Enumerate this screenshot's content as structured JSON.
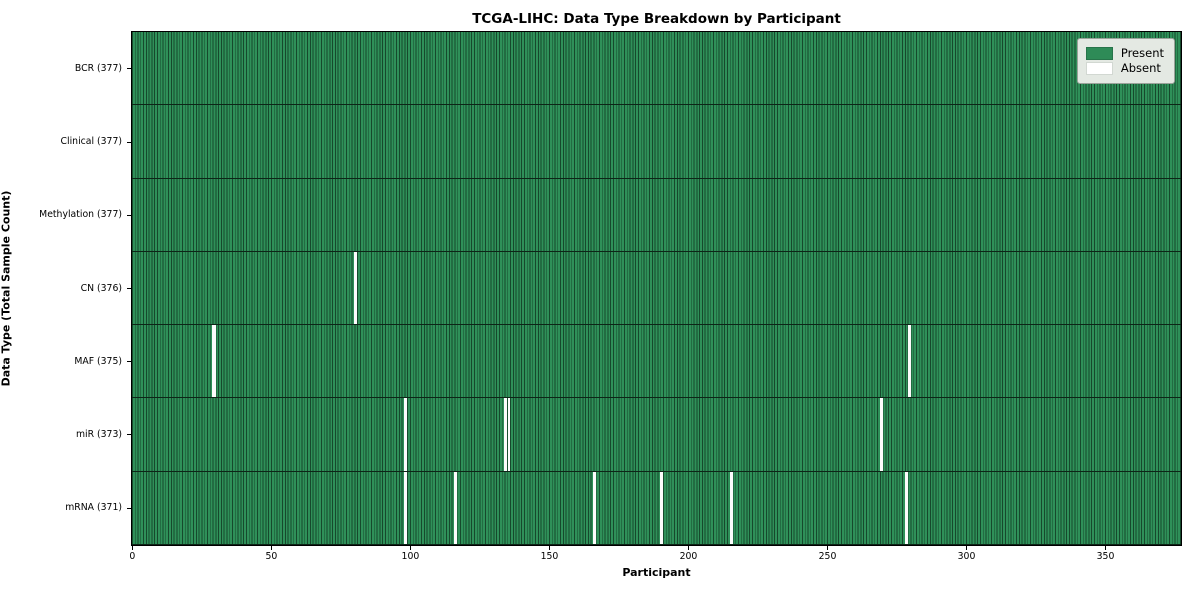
{
  "chart_data": {
    "type": "heatmap",
    "title": "TCGA-LIHC: Data Type Breakdown by Participant",
    "xlabel": "Participant",
    "ylabel": "Data Type (Total Sample Count)",
    "n_participants": 377,
    "x_ticks": [
      0,
      50,
      100,
      150,
      200,
      250,
      300,
      350
    ],
    "rows": [
      {
        "label": "BCR (377)",
        "data_type": "BCR",
        "total": 377,
        "absent_participants": []
      },
      {
        "label": "Clinical (377)",
        "data_type": "Clinical",
        "total": 377,
        "absent_participants": []
      },
      {
        "label": "Methylation (377)",
        "data_type": "Methylation",
        "total": 377,
        "absent_participants": []
      },
      {
        "label": "CN (376)",
        "data_type": "CN",
        "total": 376,
        "absent_participants": [
          80
        ]
      },
      {
        "label": "MAF (375)",
        "data_type": "MAF",
        "total": 375,
        "absent_participants": [
          29,
          279
        ]
      },
      {
        "label": "miR (373)",
        "data_type": "miR",
        "total": 373,
        "absent_participants": [
          98,
          134,
          135,
          269
        ]
      },
      {
        "label": "mRNA (371)",
        "data_type": "mRNA",
        "total": 371,
        "absent_participants": [
          98,
          116,
          166,
          190,
          215,
          278
        ]
      }
    ],
    "legend": [
      {
        "label": "Present",
        "color": "#2e8b57"
      },
      {
        "label": "Absent",
        "color": "#ffffff"
      }
    ],
    "colors": {
      "present_fill": "#2f9059",
      "cell_grid_line": "#16492c",
      "row_divider": "#0d2517",
      "absent_fill": "#fcfcfc",
      "legend_background": "#e4e9e3"
    },
    "legend_position": "upper right",
    "grid": "cell-borders"
  }
}
